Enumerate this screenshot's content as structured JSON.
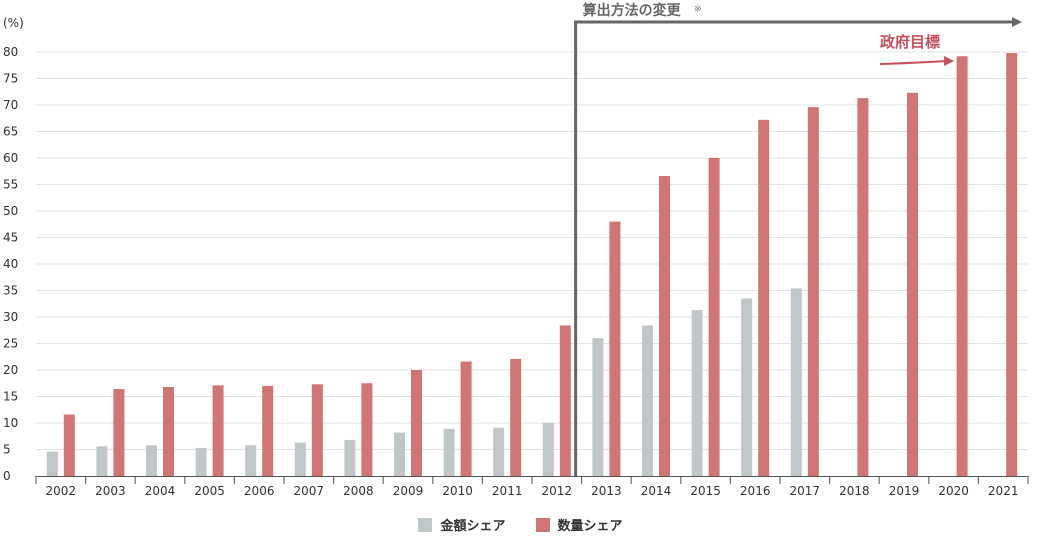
{
  "chart_data": {
    "type": "bar",
    "y_unit_label": "(%)",
    "ylim": [
      0,
      80
    ],
    "y_ticks": [
      0,
      5,
      10,
      15,
      20,
      25,
      30,
      35,
      40,
      45,
      50,
      55,
      60,
      65,
      70,
      75,
      80
    ],
    "grid": true,
    "categories": [
      "2002",
      "2003",
      "2004",
      "2005",
      "2006",
      "2007",
      "2008",
      "2009",
      "2010",
      "2011",
      "2012",
      "2013",
      "2014",
      "2015",
      "2016",
      "2017",
      "2018",
      "2019",
      "2020",
      "2021"
    ],
    "series": [
      {
        "name": "金額シェア",
        "color": "#c0c7c9",
        "values": [
          4.6,
          5.6,
          5.8,
          5.3,
          5.8,
          6.3,
          6.8,
          8.2,
          8.9,
          9.1,
          10.0,
          26.0,
          28.4,
          31.3,
          33.5,
          35.4,
          null,
          null,
          null,
          null
        ]
      },
      {
        "name": "数量シェア",
        "color": "#d07474",
        "values": [
          11.6,
          16.4,
          16.8,
          17.1,
          17.0,
          17.3,
          17.5,
          20.0,
          21.6,
          22.1,
          28.4,
          48.0,
          56.6,
          60.0,
          67.2,
          69.6,
          71.3,
          72.3,
          79.2,
          79.8
        ]
      }
    ],
    "annotations": {
      "method_change": {
        "label": "算出方法の変更",
        "note": "※",
        "start_category": "2013"
      },
      "target": {
        "label": "政府目標",
        "color": "#c9505e",
        "arrow_to_category": "2020"
      }
    },
    "legend_placement": "bottom-center"
  }
}
